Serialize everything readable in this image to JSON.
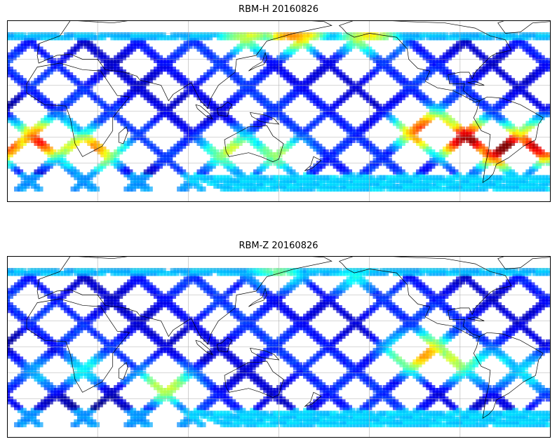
{
  "panels": [
    {
      "id": "rbm-h",
      "title": "RBM-H 20160826",
      "hot_zones": [
        {
          "lon": 250,
          "lat": -15,
          "r": 0.85
        },
        {
          "lon": 275,
          "lat": -22,
          "r": 0.95
        },
        {
          "lon": 300,
          "lat": -28,
          "r": 1.0
        },
        {
          "lon": 325,
          "lat": -25,
          "r": 0.95
        },
        {
          "lon": 355,
          "lat": -22,
          "r": 0.9
        },
        {
          "lon": 25,
          "lat": -30,
          "r": 0.8
        },
        {
          "lon": 130,
          "lat": 60,
          "r": 0.55
        },
        {
          "lon": 160,
          "lat": 62,
          "r": 0.75
        },
        {
          "lon": 210,
          "lat": 60,
          "r": 0.6
        },
        {
          "lon": 120,
          "lat": -30,
          "r": 0.55
        },
        {
          "lon": 150,
          "lat": -32,
          "r": 0.5
        }
      ]
    },
    {
      "id": "rbm-z",
      "title": "RBM-Z 20160826",
      "hot_zones": [
        {
          "lon": 245,
          "lat": -5,
          "r": 0.7
        },
        {
          "lon": 265,
          "lat": -10,
          "r": 0.55
        },
        {
          "lon": 290,
          "lat": -15,
          "r": 0.4
        },
        {
          "lon": 320,
          "lat": -20,
          "r": 0.35
        },
        {
          "lon": 355,
          "lat": -20,
          "r": 0.35
        },
        {
          "lon": 20,
          "lat": -18,
          "r": 0.4
        },
        {
          "lon": 75,
          "lat": -30,
          "r": 0.55
        },
        {
          "lon": 150,
          "lat": 60,
          "r": 0.45
        },
        {
          "lon": 200,
          "lat": 55,
          "r": 0.35
        }
      ]
    }
  ],
  "map": {
    "lon_range": [
      -30,
      330
    ],
    "lat_range": [
      -70,
      70
    ],
    "data_lat_range": [
      -60,
      60
    ],
    "gridlines_lon": [
      30,
      90,
      150,
      210,
      270
    ],
    "gridlines_lat": [
      -40,
      -20,
      0,
      20,
      40,
      60
    ],
    "colormap": "jet",
    "alpha": 0.7
  }
}
